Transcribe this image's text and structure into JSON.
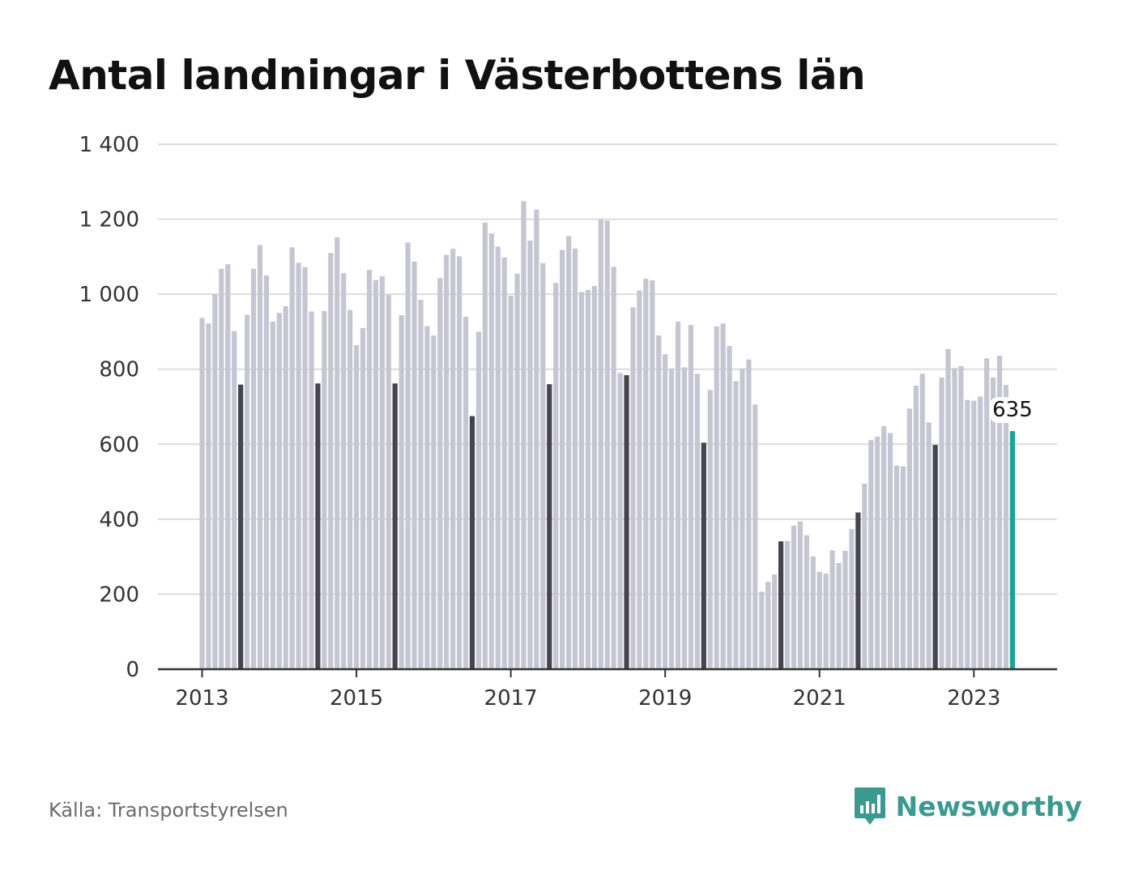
{
  "title": "Antal landningar i Västerbottens län",
  "source": "Källa: Transportstyrelsen",
  "brand": {
    "name": "Newsworthy",
    "icon": "bar-chart-speech-bubble-icon"
  },
  "colors": {
    "regular": "#c6c6d3",
    "july": "#45444f",
    "latest": "#1ba39b",
    "grid": "#dcdcdc",
    "axis": "#333333",
    "brand": "#3a9a8f"
  },
  "chart_data": {
    "type": "bar",
    "title": "Antal landningar i Västerbottens län",
    "xlabel": "",
    "ylabel": "",
    "ylim": [
      0,
      1400
    ],
    "yticks": [
      0,
      200,
      400,
      600,
      800,
      1000,
      1200,
      1400
    ],
    "ytick_labels": [
      "0",
      "200",
      "400",
      "600",
      "800",
      "1 000",
      "1 200",
      "1 400"
    ],
    "xticks": [
      "2013",
      "2015",
      "2017",
      "2019",
      "2021",
      "2023"
    ],
    "grid": true,
    "x_start": "2013-01",
    "x_end": "2023-07",
    "highlight": {
      "dark": "July of each year",
      "teal": "latest month"
    },
    "annotation": {
      "x": "2023-07",
      "text": "635"
    },
    "values": [
      937,
      922,
      1000,
      1068,
      1080,
      902,
      759,
      945,
      1068,
      1131,
      1050,
      927,
      950,
      968,
      1125,
      1084,
      1072,
      954,
      762,
      955,
      1110,
      1152,
      1056,
      958,
      864,
      910,
      1065,
      1038,
      1048,
      998,
      762,
      944,
      1138,
      1087,
      985,
      915,
      890,
      1043,
      1105,
      1121,
      1101,
      940,
      675,
      900,
      1191,
      1162,
      1127,
      1098,
      996,
      1055,
      1248,
      1143,
      1226,
      1083,
      760,
      1030,
      1118,
      1155,
      1122,
      1006,
      1011,
      1022,
      1199,
      1196,
      1073,
      790,
      784,
      965,
      1010,
      1041,
      1037,
      890,
      840,
      802,
      927,
      805,
      918,
      788,
      604,
      745,
      914,
      922,
      862,
      768,
      802,
      826,
      706,
      207,
      233,
      253,
      341,
      342,
      383,
      394,
      357,
      301,
      260,
      255,
      317,
      283,
      316,
      374,
      418,
      495,
      611,
      620,
      648,
      630,
      543,
      541,
      695,
      756,
      788,
      658,
      598,
      778,
      854,
      803,
      808,
      718,
      716,
      727,
      829,
      778,
      836,
      758,
      635
    ]
  }
}
